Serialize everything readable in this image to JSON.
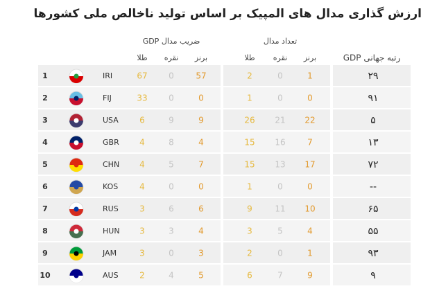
{
  "header": {
    "title": "ارزش گذاری مدال های المپیک بر اساس تولید ناخالص ملی کشورها"
  },
  "table": {
    "gdp_medal_coefficient": {
      "title": "ضریب مدال GDP",
      "columns": [
        "طلا",
        "نقره",
        "برنز"
      ]
    },
    "medal_count": {
      "title": "تعداد مدال",
      "columns": [
        "طلا",
        "نقره",
        "برنز"
      ]
    },
    "gdp_rank_header": "رتبه جهانی GDP",
    "rows": [
      {
        "rank": 1,
        "code": "IRI",
        "gdp_medals": [
          67,
          0,
          57
        ],
        "medals": [
          2,
          0,
          1
        ],
        "gdp_rank": "۲۹"
      },
      {
        "rank": 2,
        "code": "FIJ",
        "gdp_medals": [
          33,
          0,
          0
        ],
        "medals": [
          1,
          0,
          0
        ],
        "gdp_rank": "۹۱"
      },
      {
        "rank": 3,
        "code": "USA",
        "gdp_medals": [
          6,
          9,
          9
        ],
        "medals": [
          26,
          21,
          22
        ],
        "gdp_rank": "۵"
      },
      {
        "rank": 4,
        "code": "GBR",
        "gdp_medals": [
          4,
          8,
          4
        ],
        "medals": [
          15,
          16,
          7
        ],
        "gdp_rank": "۱۳"
      },
      {
        "rank": 5,
        "code": "CHN",
        "gdp_medals": [
          4,
          5,
          7
        ],
        "medals": [
          15,
          13,
          17
        ],
        "gdp_rank": "۷۲"
      },
      {
        "rank": 6,
        "code": "KOS",
        "gdp_medals": [
          4,
          0,
          0
        ],
        "medals": [
          1,
          0,
          0
        ],
        "gdp_rank": "--"
      },
      {
        "rank": 7,
        "code": "RUS",
        "gdp_medals": [
          3,
          6,
          6
        ],
        "medals": [
          9,
          11,
          10
        ],
        "gdp_rank": "۶۵"
      },
      {
        "rank": 8,
        "code": "HUN",
        "gdp_medals": [
          3,
          3,
          4
        ],
        "medals": [
          3,
          5,
          4
        ],
        "gdp_rank": "۵۵"
      },
      {
        "rank": 9,
        "code": "JAM",
        "gdp_medals": [
          3,
          0,
          3
        ],
        "medals": [
          2,
          0,
          1
        ],
        "gdp_rank": "۹۳"
      },
      {
        "rank": 10,
        "code": "AUS",
        "gdp_medals": [
          2,
          4,
          5
        ],
        "medals": [
          6,
          7,
          9
        ],
        "gdp_rank": "۹"
      }
    ]
  }
}
